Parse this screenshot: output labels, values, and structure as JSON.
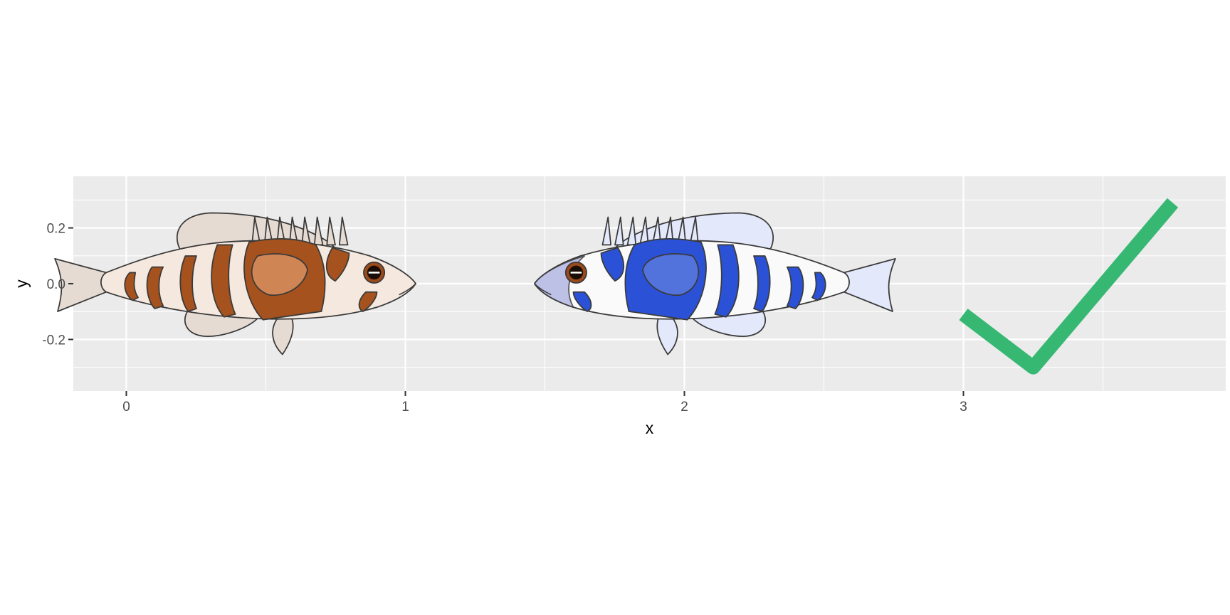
{
  "chart_data": {
    "type": "scatter",
    "title": "",
    "xlabel": "x",
    "ylabel": "y",
    "xlim": [
      -0.19,
      3.94
    ],
    "ylim": [
      -0.385,
      0.385
    ],
    "x_ticks": [
      0,
      1,
      2,
      3
    ],
    "x_tick_labels": [
      "0",
      "1",
      "2",
      "3"
    ],
    "y_ticks": [
      -0.2,
      0.0,
      0.2
    ],
    "y_tick_labels": [
      "-0.2",
      "0.0",
      "0.2"
    ],
    "grid": true,
    "legend": "none",
    "panel_background": "#ebebeb",
    "points": [
      {
        "x": 0.5,
        "y": 0.0,
        "glyph": "fish",
        "facing": "right",
        "colors": {
          "body": "#f5e8df",
          "fins": "#e6dbd3",
          "stripes": "#a5521e",
          "patch": "#d08555",
          "eye_ring": "#9b4a1a"
        }
      },
      {
        "x": 2.0,
        "y": 0.0,
        "glyph": "fish",
        "facing": "left",
        "colors": {
          "body": "#fafafa",
          "fins": "#e3e8fb",
          "stripes": "#2b52d6",
          "patch": "#5272dc",
          "head": "#b4b8e3",
          "eye_ring": "#9b4a1a"
        }
      },
      {
        "x": 3.25,
        "y": -0.3,
        "glyph": "checkmark-icon",
        "color": "#36b873"
      }
    ],
    "checkmark_path": [
      {
        "x": 3.0,
        "y": -0.11
      },
      {
        "x": 3.25,
        "y": -0.3
      },
      {
        "x": 3.75,
        "y": 0.29
      }
    ]
  }
}
